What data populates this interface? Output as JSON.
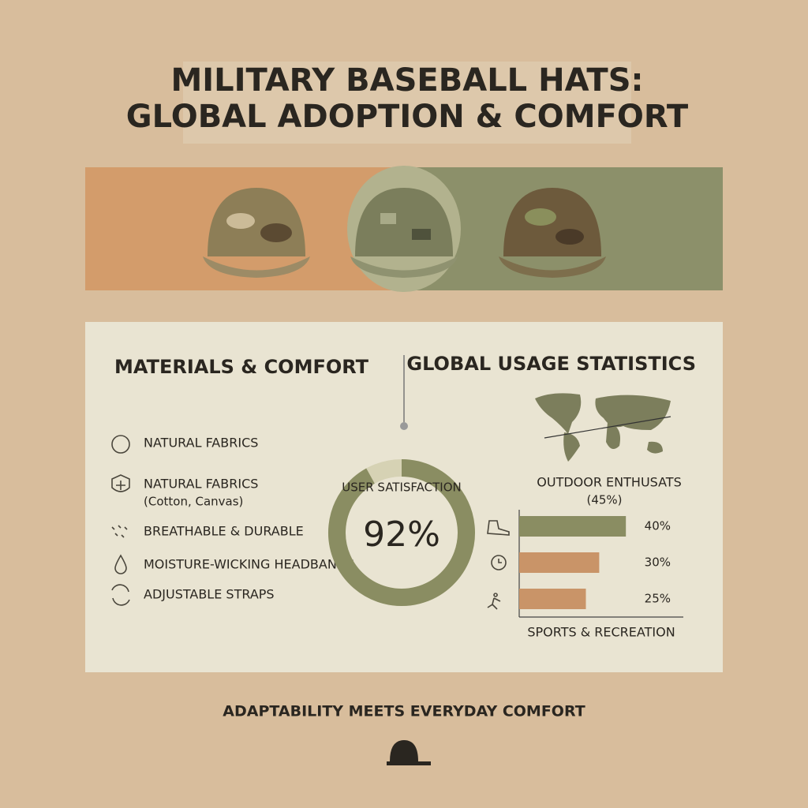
{
  "header": {
    "title_lines": [
      "MILITARY BASEBALL HATS:",
      "GLOBAL ADOPTION & COMFORT"
    ]
  },
  "materials": {
    "title": "MATERIALS & COMFORT",
    "items": [
      {
        "label": "NATURAL FABRICS"
      },
      {
        "label": "NATURAL FABRICS",
        "detail": "(Cotton, Canvas)"
      },
      {
        "label": "BREATHABLE & DURABLE"
      },
      {
        "label": "MOISTURE-WICKING HEADBANDS"
      },
      {
        "label": "ADJUSTABLE STRAPS"
      }
    ]
  },
  "stats": {
    "title": "GLOBAL USAGE STATISTICS"
  },
  "chart_data": [
    {
      "type": "donut",
      "title": "USER SATISFACTION",
      "values": [
        92
      ],
      "value_labels": [
        "92%"
      ],
      "color": "#8a8d62",
      "rest_color": "#d6d2b4"
    },
    {
      "type": "hbar",
      "title": "OUTDOOR ENTHUSATS",
      "subtitle": "(45%)",
      "xlabel": "SPORTS & RECREATION",
      "values": [
        40,
        30,
        25
      ],
      "value_labels": [
        "40%",
        "30%",
        "25%"
      ],
      "colors": [
        "#8a8d62",
        "#c99468",
        "#c99468"
      ],
      "xlim": [
        0,
        50
      ]
    }
  ],
  "footer": {
    "tagline": "ADAPTABILITY MEETS EVERYDAY COMFORT"
  }
}
